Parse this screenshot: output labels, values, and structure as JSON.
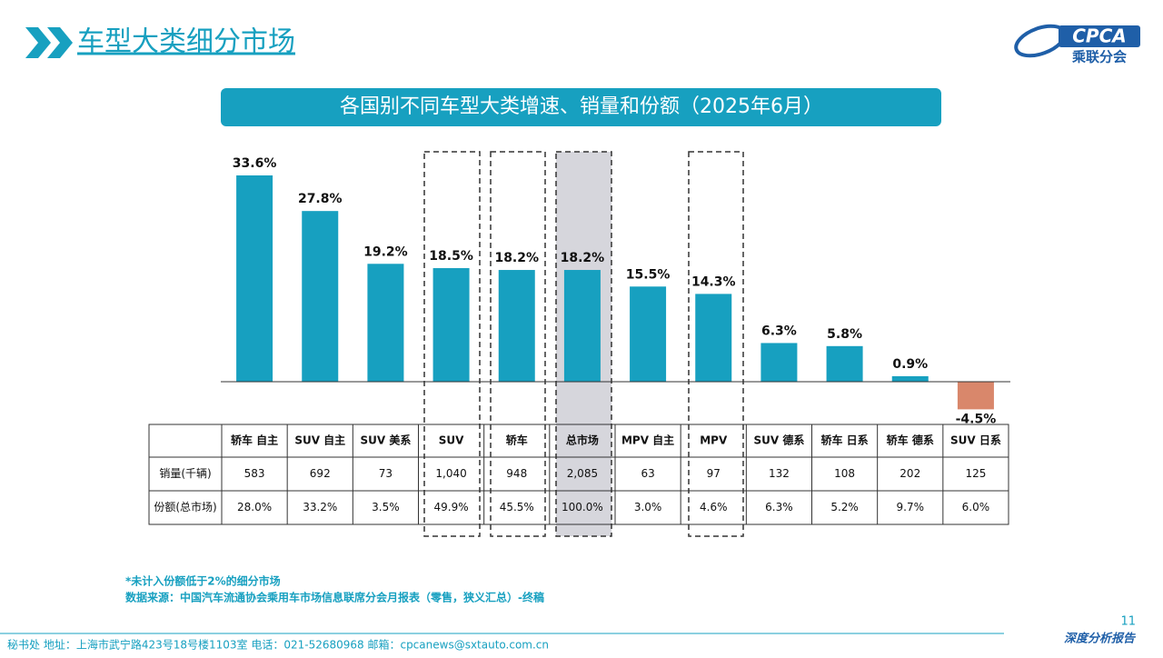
{
  "header": {
    "title": "车型大类细分市场",
    "logo": "CPCA",
    "logo_sub": "乘联分会"
  },
  "chart_data": {
    "type": "bar",
    "title": "各国别不同车型大类增速、销量和份额（2025年6月）",
    "categories": [
      "轿车 自主",
      "SUV 自主",
      "SUV 美系",
      "SUV",
      "轿车",
      "总市场",
      "MPV 自主",
      "MPV",
      "SUV 德系",
      "轿车 日系",
      "轿车 德系",
      "SUV 日系"
    ],
    "values": [
      33.6,
      27.8,
      19.2,
      18.5,
      18.2,
      18.2,
      15.5,
      14.3,
      6.3,
      5.8,
      0.9,
      -4.5
    ],
    "value_labels": [
      "33.6%",
      "27.8%",
      "19.2%",
      "18.5%",
      "18.2%",
      "18.2%",
      "15.5%",
      "14.3%",
      "6.3%",
      "5.8%",
      "0.9%",
      "-4.5%"
    ],
    "color": "#17a0c0",
    "negative_color": "#d9876b"
  },
  "table": {
    "rows": [
      {
        "label": "销量(千辆)",
        "cells": [
          "583",
          "692",
          "73",
          "1,040",
          "948",
          "2,085",
          "63",
          "97",
          "132",
          "108",
          "202",
          "125"
        ]
      },
      {
        "label": "份额(总市场)",
        "cells": [
          "28.0%",
          "33.2%",
          "3.5%",
          "49.9%",
          "45.5%",
          "100.0%",
          "3.0%",
          "4.6%",
          "6.3%",
          "5.2%",
          "9.7%",
          "6.0%"
        ]
      }
    ]
  },
  "notes": [
    "*未计入份额低于2%的细分市场",
    "数据来源：中国汽车流通协会乘用车市场信息联席分会月报表（零售，狭义汇总）-终稿"
  ],
  "footer": {
    "address": "秘书处   地址：上海市武宁路423号18号楼1103室   电话：021-52680968   邮箱：cpcanews@sxtauto.com.cn",
    "page": "11",
    "report": "深度分析报告"
  }
}
